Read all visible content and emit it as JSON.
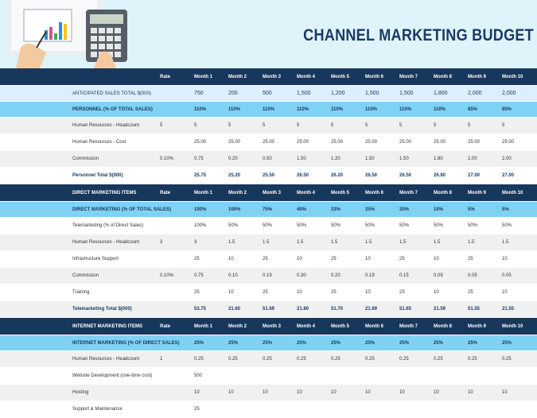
{
  "header": {
    "title": "CHANNEL MARKETING BUDGET"
  },
  "months": [
    "Month 1",
    "Month 2",
    "Month 3",
    "Month 4",
    "Month 5",
    "Month 6",
    "Month 7",
    "Month 8",
    "Month 9",
    "Month 10"
  ],
  "rate_label": "Rate",
  "anticipated": {
    "label": "ANTICIPATED SALES TOTAL $(000)",
    "values": [
      "750",
      "200",
      "500",
      "1,500",
      "1,200",
      "1,500",
      "1,500",
      "1,800",
      "2,000",
      "2,000"
    ]
  },
  "personnel": {
    "section": {
      "label": "PERSONNEL (% OF TOTAL SALES)",
      "values": [
        "110%",
        "110%",
        "110%",
        "110%",
        "110%",
        "110%",
        "110%",
        "110%",
        "85%",
        "85%"
      ]
    },
    "rows": [
      {
        "label": "Human Resources - Headcount",
        "rate": "5",
        "values": [
          "5",
          "5",
          "5",
          "5",
          "5",
          "5",
          "5",
          "5",
          "5",
          "5"
        ]
      },
      {
        "label": "Human Resources - Cost",
        "rate": "",
        "values": [
          "25.00",
          "25.00",
          "25.00",
          "25.00",
          "25.00",
          "25.00",
          "25.00",
          "25.00",
          "25.00",
          "25.00"
        ]
      },
      {
        "label": "Commission",
        "rate": "0.10%",
        "values": [
          "0.75",
          "0.20",
          "0.50",
          "1.50",
          "1.20",
          "1.50",
          "1.50",
          "1.80",
          "2.00",
          "2.00"
        ]
      }
    ],
    "total": {
      "label": "Personnel Total $(000)",
      "values": [
        "25.75",
        "25.20",
        "25.50",
        "26.50",
        "26.20",
        "26.50",
        "26.50",
        "26.80",
        "27.00",
        "27.00"
      ]
    }
  },
  "direct": {
    "header_label": "DIRECT MARKETING ITEMS",
    "section": {
      "label": "DIRECT MARKETING (% OF TOTAL SALES)",
      "values": [
        "100%",
        "100%",
        "75%",
        "40%",
        "33%",
        "25%",
        "20%",
        "10%",
        "5%",
        "5%"
      ]
    },
    "rows": [
      {
        "label": "Telemarketing (% of Direct Sales)",
        "rate": "",
        "values": [
          "100%",
          "50%",
          "50%",
          "50%",
          "50%",
          "50%",
          "50%",
          "50%",
          "50%",
          "50%"
        ]
      },
      {
        "label": "Human Resources - Headcount",
        "rate": "3",
        "values": [
          "3",
          "1.5",
          "1.5",
          "1.5",
          "1.5",
          "1.5",
          "1.5",
          "1.5",
          "1.5",
          "1.5"
        ]
      },
      {
        "label": "Infrastructure Support",
        "rate": "",
        "values": [
          "25",
          "10",
          "25",
          "10",
          "25",
          "10",
          "25",
          "10",
          "25",
          "10"
        ]
      },
      {
        "label": "Commission",
        "rate": "0.10%",
        "values": [
          "0.75",
          "0.10",
          "0.19",
          "0.30",
          "0.20",
          "0.19",
          "0.15",
          "0.09",
          "0.05",
          "0.05"
        ]
      },
      {
        "label": "Training",
        "rate": "",
        "values": [
          "25",
          "10",
          "25",
          "10",
          "25",
          "10",
          "25",
          "10",
          "25",
          "10"
        ]
      }
    ],
    "total": {
      "label": "Telemarketing Total $(000)",
      "values": [
        "53.75",
        "21.60",
        "51.69",
        "21.80",
        "51.70",
        "21.69",
        "51.65",
        "21.59",
        "51.55",
        "21.55"
      ]
    }
  },
  "internet": {
    "header_label": "INTERNET MARKETING ITEMS",
    "section": {
      "label": "INTERNET MARKETING (% OF DIRECT SALES)",
      "values": [
        "25%",
        "25%",
        "25%",
        "25%",
        "25%",
        "25%",
        "25%",
        "25%",
        "25%",
        "25%"
      ]
    },
    "rows": [
      {
        "label": "Human Resources - Headcount",
        "rate": "1",
        "values": [
          "0.25",
          "0.25",
          "0.25",
          "0.25",
          "0.25",
          "0.25",
          "0.25",
          "0.25",
          "0.25",
          "0.25"
        ]
      },
      {
        "label": "Website Development (one-time cost)",
        "rate": "",
        "values": [
          "500",
          "",
          "",
          "",
          "",
          "",
          "",
          "",
          "",
          ""
        ]
      },
      {
        "label": "Hosting",
        "rate": "",
        "values": [
          "10",
          "10",
          "10",
          "10",
          "10",
          "10",
          "10",
          "10",
          "10",
          "10"
        ]
      },
      {
        "label": "Support & Maintenance",
        "rate": "",
        "values": [
          "25",
          "",
          "",
          "",
          "",
          "",
          "",
          "",
          "",
          ""
        ]
      }
    ]
  }
}
